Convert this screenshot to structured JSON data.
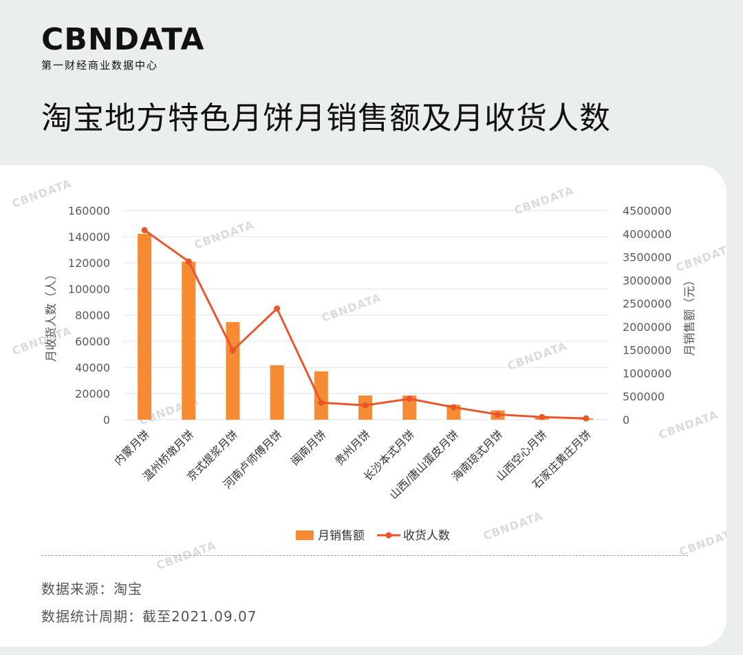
{
  "logo": {
    "wordmark": "CBNDATA",
    "subtitle": "第一财经商业数据中心"
  },
  "title": "淘宝地方特色月饼月销售额及月收货人数",
  "watermark": "CBNDATA",
  "colors": {
    "bar": "#f68b33",
    "line": "#e9562d",
    "grid": "#e3e3e3",
    "background": "#eaeeef"
  },
  "chart_data": {
    "type": "bar",
    "categories": [
      "内蒙月饼",
      "温州桥墩月饼",
      "京式提浆月饼",
      "河南卢师傅月饼",
      "闽南月饼",
      "贵州月饼",
      "长沙本式月饼",
      "山西/唐山蛋皮月饼",
      "海南琼式月饼",
      "山西空心月饼",
      "石家庄黄庄月饼"
    ],
    "series": [
      {
        "name": "月销售额",
        "type": "bar",
        "axis": "right",
        "values": [
          4000000,
          3400000,
          2100000,
          1170000,
          1040000,
          520000,
          520000,
          320000,
          200000,
          80000,
          30000
        ]
      },
      {
        "name": "收货人数",
        "type": "line",
        "axis": "left",
        "values": [
          145000,
          121000,
          53000,
          85000,
          13000,
          11000,
          16000,
          9500,
          4000,
          2000,
          1000
        ]
      }
    ],
    "ylabel": "月收货人数（人）",
    "y2label": "月销售额（元）",
    "ylim": [
      0,
      160000
    ],
    "y2lim": [
      0,
      4500000
    ],
    "yticks": [
      "160000",
      "140000",
      "120000",
      "100000",
      "80000",
      "60000",
      "40000",
      "20000",
      "0"
    ],
    "y2ticks": [
      "4500000",
      "4000000",
      "3500000",
      "3000000",
      "2500000",
      "2000000",
      "1500000",
      "1000000",
      "500000",
      "0"
    ],
    "grid": true,
    "legend": "bottom"
  },
  "notes": {
    "source": "数据来源：淘宝",
    "period": "数据统计周期：截至2021.09.07"
  }
}
